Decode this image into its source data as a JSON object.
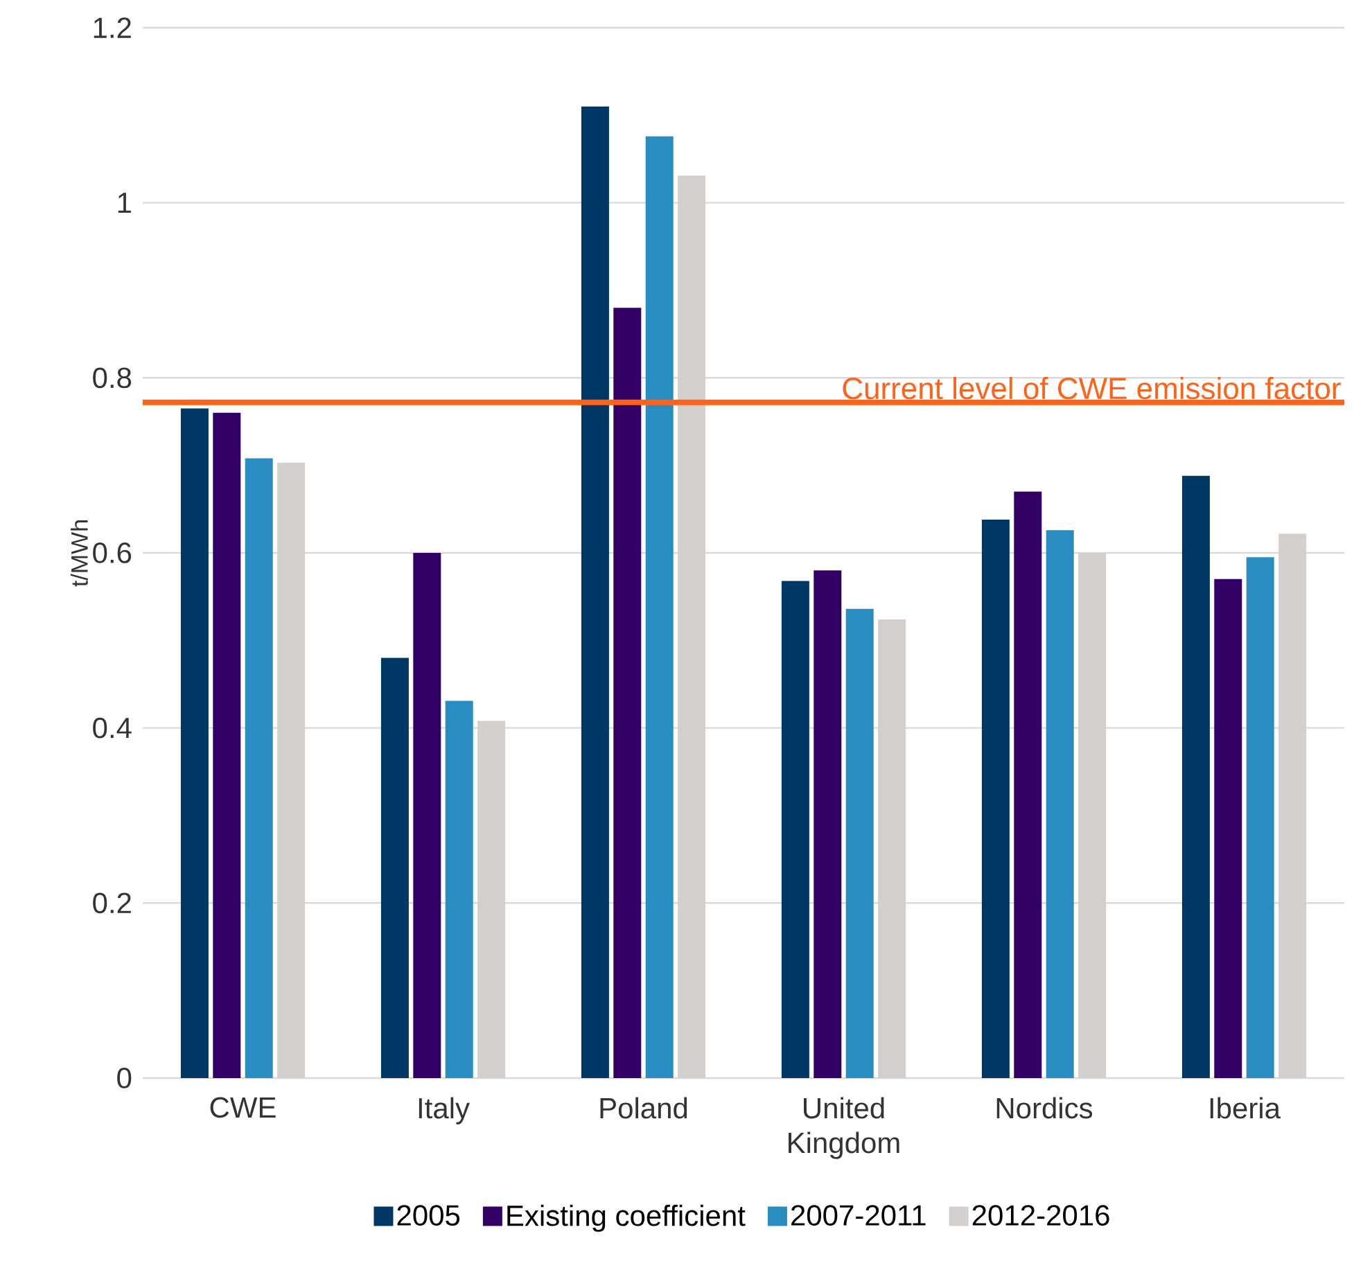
{
  "chart_data": {
    "type": "bar",
    "ylabel": "t/MWh",
    "categories": [
      "CWE",
      "Italy",
      "Poland",
      "United Kingdom",
      "Nordics",
      "Iberia"
    ],
    "series": [
      {
        "name": "2005",
        "color": "#003865",
        "values": [
          0.765,
          0.48,
          1.11,
          0.568,
          0.638,
          0.688
        ]
      },
      {
        "name": "Existing coefficient",
        "color": "#330066",
        "values": [
          0.76,
          0.6,
          0.88,
          0.58,
          0.67,
          0.57
        ]
      },
      {
        "name": "2007-2011",
        "color": "#2a8dc1",
        "values": [
          0.708,
          0.431,
          1.076,
          0.536,
          0.626,
          0.595
        ]
      },
      {
        "name": "2012-2016",
        "color": "#d3cfcc",
        "values": [
          0.703,
          0.408,
          1.031,
          0.524,
          0.6,
          0.622
        ]
      }
    ],
    "ylim": [
      0,
      1.2
    ],
    "yticks": [
      0,
      0.2,
      0.4,
      0.6,
      0.8,
      1,
      1.2
    ],
    "grid": "y",
    "legend": "bottom",
    "ref_lines": [
      {
        "axis": "y",
        "value": 0.772,
        "label": "Current level of CWE emission factor",
        "color": "#ff6319"
      }
    ]
  }
}
